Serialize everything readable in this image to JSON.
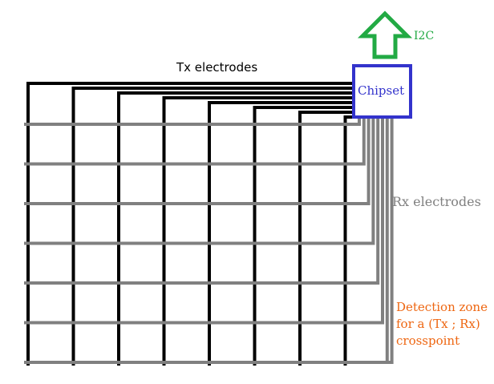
{
  "diagram": {
    "tx_label": "Tx electrodes",
    "rx_label": "Rx electrodes",
    "chipset_label": "Chipset",
    "bus_label": "I2C",
    "detection_lines": [
      "Detection zone",
      "for a (Tx ; Rx)",
      "crosspoint"
    ],
    "colors": {
      "tx": "#000000",
      "rx": "#808080",
      "chipset": "#3333cc",
      "bus": "#22aa44",
      "detection": "#ee6611"
    },
    "tx_electrode_count": 8,
    "rx_electrode_count": 7
  }
}
